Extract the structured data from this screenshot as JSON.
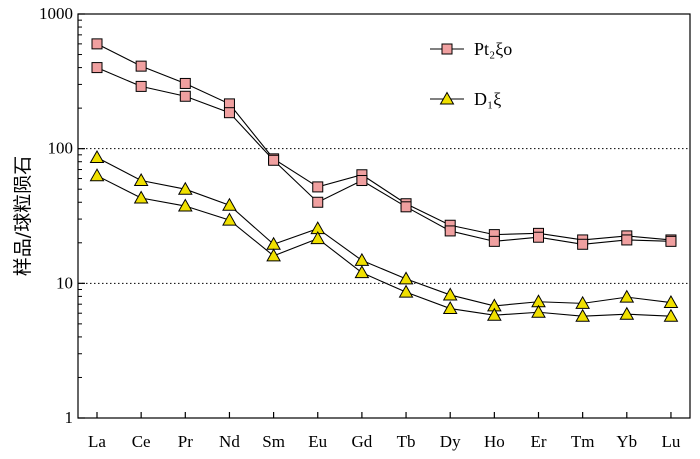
{
  "chart_data": {
    "type": "line",
    "yscale": "log",
    "ylim": [
      1,
      1000
    ],
    "ylabel": "样品/球粒陨石",
    "xlabel": "",
    "title": "",
    "grid": "dotted horizontal lines at 10 and 100",
    "legend_position": "top-right",
    "categories": [
      "La",
      "Ce",
      "Pr",
      "Nd",
      "Sm",
      "Eu",
      "Gd",
      "Tb",
      "Dy",
      "Ho",
      "Er",
      "Tm",
      "Yb",
      "Lu"
    ],
    "yticks": [
      "1",
      "10",
      "100",
      "1000"
    ],
    "groups": [
      {
        "name": "Pt₂ξo",
        "marker": "square",
        "marker_color": "#f0a0a0",
        "series": [
          {
            "values": [
              600,
              410,
              305,
              215,
              84,
              52,
              64,
              39,
              27,
              23,
              23.5,
              21,
              22.5,
              21
            ]
          },
          {
            "values": [
              400,
              290,
              245,
              185,
              82,
              40,
              58,
              37,
              24.5,
              20.5,
              22,
              19.5,
              21,
              20.5
            ]
          }
        ]
      },
      {
        "name": "D₁ξ",
        "marker": "triangle",
        "marker_color": "#f0e000",
        "series": [
          {
            "values": [
              86,
              58,
              50,
              38,
              19.5,
              25.5,
              14.8,
              10.8,
              8.2,
              6.8,
              7.3,
              7.1,
              7.9,
              7.2
            ]
          },
          {
            "values": [
              63,
              43,
              37.5,
              29.5,
              16,
              21.5,
              12,
              8.6,
              6.5,
              5.8,
              6.1,
              5.7,
              5.9,
              5.7
            ]
          }
        ]
      }
    ]
  }
}
